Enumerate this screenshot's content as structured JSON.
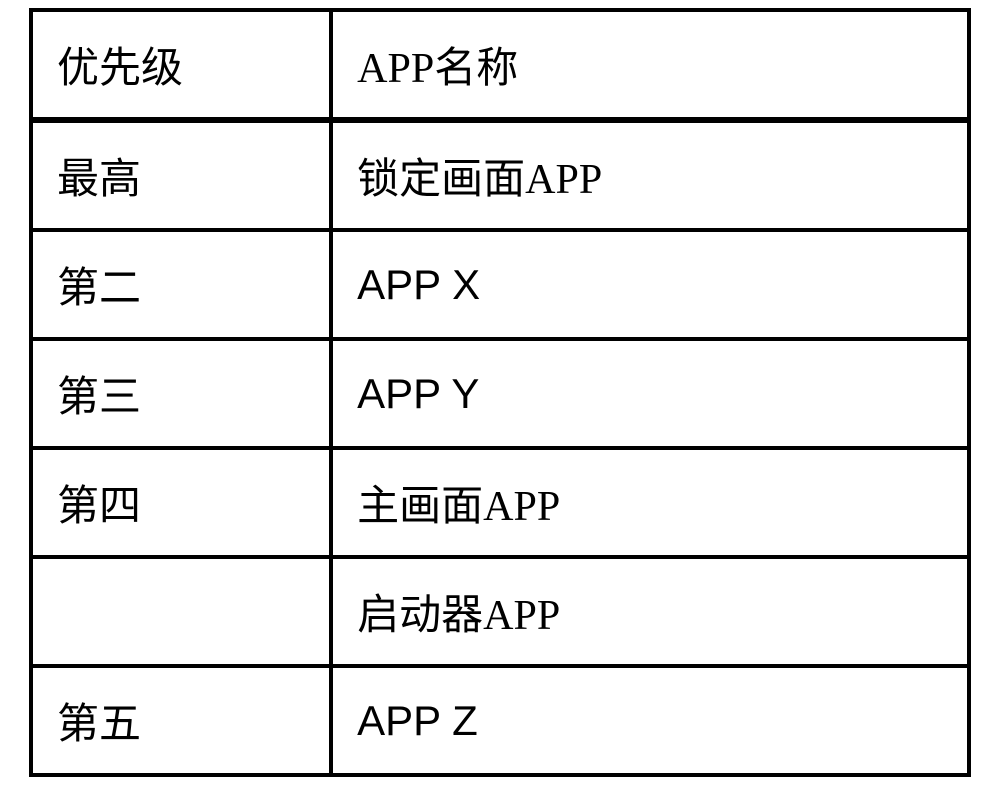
{
  "table": {
    "columns": [
      "优先级",
      "APP名称"
    ],
    "rows": [
      [
        "最高",
        "锁定画面APP"
      ],
      [
        "第二",
        "APP X"
      ],
      [
        "第三",
        "APP Y"
      ],
      [
        "第四",
        "主画面APP"
      ],
      [
        "",
        "启动器APP"
      ],
      [
        "第五",
        "APP Z"
      ]
    ],
    "column_widths": [
      "32%",
      "68%"
    ],
    "border_color": "#000000",
    "border_width": 4,
    "header_border_bottom_width": 6,
    "background_color": "#ffffff",
    "text_color": "#000000",
    "font_family_cjk": "SimSun",
    "font_family_latin": "Arial",
    "font_size": 42,
    "cell_padding": "22px 24px"
  }
}
